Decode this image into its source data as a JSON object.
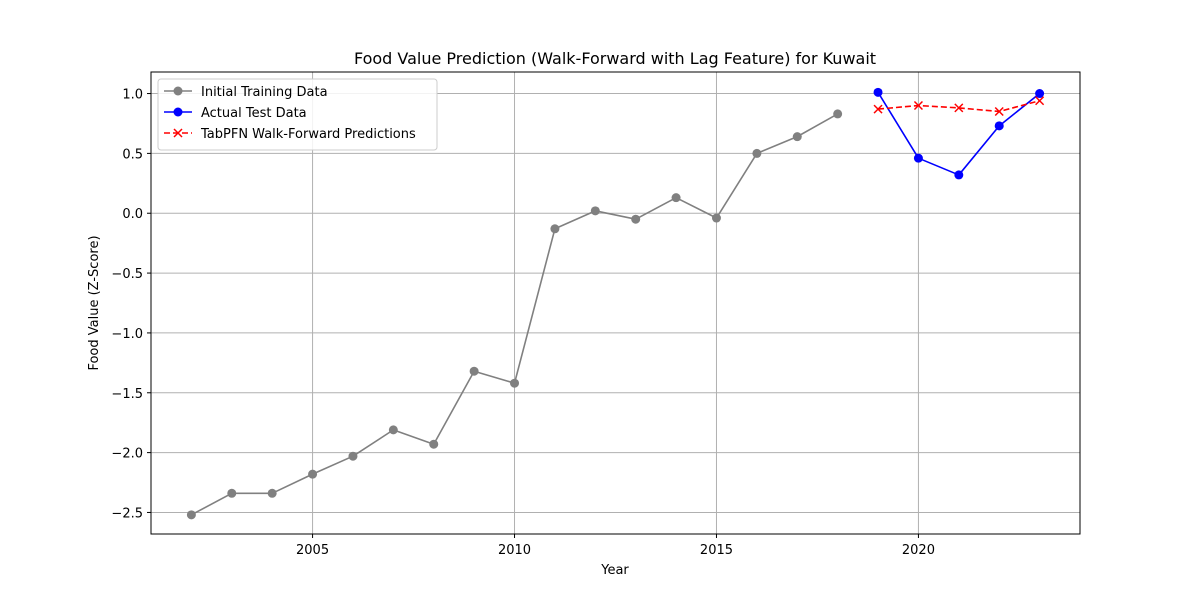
{
  "chart_data": {
    "type": "line",
    "title": "Food Value Prediction (Walk-Forward with Lag Feature) for Kuwait",
    "xlabel": "Year",
    "ylabel": "Food Value (Z-Score)",
    "xlim": [
      2001,
      2024
    ],
    "ylim": [
      -2.68,
      1.18
    ],
    "x_ticks": [
      2005,
      2010,
      2015,
      2020
    ],
    "y_ticks": [
      1.0,
      0.5,
      0.0,
      -0.5,
      -1.0,
      -1.5,
      -2.0,
      -2.5
    ],
    "x_tick_labels": [
      "2005",
      "2010",
      "2015",
      "2020"
    ],
    "y_tick_labels": [
      "1.0",
      "0.5",
      "0.0",
      "−0.5",
      "−1.0",
      "−1.5",
      "−2.0",
      "−2.5"
    ],
    "grid": true,
    "legend_position": "upper-left",
    "series": [
      {
        "name": "Initial Training Data",
        "color": "#808080",
        "marker": "circle",
        "line_style": "solid",
        "x": [
          2002,
          2003,
          2004,
          2005,
          2006,
          2007,
          2008,
          2009,
          2010,
          2011,
          2012,
          2013,
          2014,
          2015,
          2016,
          2017,
          2018
        ],
        "values": [
          -2.52,
          -2.34,
          -2.34,
          -2.18,
          -2.03,
          -1.81,
          -1.93,
          -1.32,
          -1.42,
          -0.13,
          0.02,
          -0.05,
          0.13,
          -0.04,
          0.5,
          0.64,
          0.83
        ]
      },
      {
        "name": "Actual Test Data",
        "color": "#0000ff",
        "marker": "circle",
        "line_style": "solid",
        "x": [
          2019,
          2020,
          2021,
          2022,
          2023
        ],
        "values": [
          1.01,
          0.46,
          0.32,
          0.73,
          1.0
        ]
      },
      {
        "name": "TabPFN Walk-Forward Predictions",
        "color": "#ff0000",
        "marker": "x",
        "line_style": "dashed",
        "x": [
          2019,
          2020,
          2021,
          2022,
          2023
        ],
        "values": [
          0.87,
          0.9,
          0.88,
          0.85,
          0.94
        ]
      }
    ]
  }
}
